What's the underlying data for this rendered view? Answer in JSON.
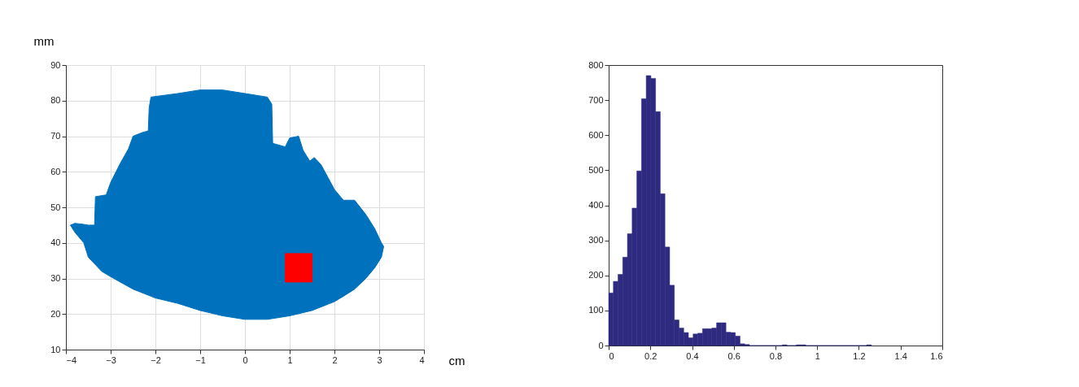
{
  "chart_data": [
    {
      "type": "area",
      "xlabel": "cm",
      "ylabel": "mm",
      "xlim": [
        -4,
        4
      ],
      "xticks": [
        -4,
        -3,
        -2,
        -1,
        0,
        1,
        2,
        3,
        4
      ],
      "ylim": [
        10,
        90
      ],
      "yticks": [
        10,
        20,
        30,
        40,
        50,
        60,
        70,
        80,
        90
      ],
      "grid": true,
      "series": [
        {
          "type": "area",
          "color": "#0072bd",
          "x": [
            -3.9,
            -3.8,
            -3.6,
            -3.5,
            -3.36,
            -3.34,
            -3.1,
            -3.0,
            -2.8,
            -2.6,
            -2.5,
            -2.3,
            -2.16,
            -2.14,
            -2.1,
            -1.5,
            -1.0,
            -0.5,
            0,
            0.5,
            0.6,
            0.62,
            0.9,
            1.0,
            1.2,
            1.3,
            1.45,
            1.55,
            1.7,
            2.0,
            2.2,
            2.45,
            2.7,
            2.9,
            3.05,
            3.1,
            3.05,
            2.9,
            2.7,
            2.45,
            2.2,
            2.0,
            1.5,
            1.0,
            0.5,
            0,
            -0.5,
            -1.0,
            -1.5,
            -2.0,
            -2.5,
            -3.0,
            -3.2,
            -3.5,
            -3.6,
            -3.8
          ],
          "values": [
            45,
            45.5,
            45.2,
            45,
            45,
            53,
            53.5,
            57,
            62,
            66.5,
            70,
            71,
            71.5,
            78,
            81,
            82,
            83,
            83,
            82,
            81,
            79,
            68,
            67,
            69.5,
            70,
            66,
            63,
            64,
            62,
            55,
            52,
            52,
            48,
            44,
            40,
            39,
            36,
            33,
            30,
            27,
            25,
            23.5,
            21,
            19.5,
            18.5,
            18.5,
            19.5,
            21,
            23,
            24.5,
            27,
            30.5,
            32,
            36,
            40,
            43
          ]
        },
        {
          "type": "area",
          "color": "#ff0000",
          "x": [
            0.9,
            1.5,
            1.5,
            0.9
          ],
          "values": [
            37,
            37,
            29,
            29
          ]
        }
      ]
    },
    {
      "type": "histogram",
      "color": "#2e2a80",
      "xlim": [
        0,
        1.6
      ],
      "xticks": [
        0,
        0.2,
        0.4,
        0.6,
        0.8,
        1,
        1.2,
        1.4,
        1.6
      ],
      "ylim": [
        0,
        800
      ],
      "yticks": [
        0,
        100,
        200,
        300,
        400,
        500,
        600,
        700,
        800
      ],
      "grid": false,
      "bins": [
        0,
        0.0225,
        0.045,
        0.0675,
        0.09,
        0.1125,
        0.135,
        0.1575,
        0.18,
        0.2025,
        0.225,
        0.2475,
        0.27,
        0.2925,
        0.315,
        0.3375,
        0.36,
        0.3825,
        0.405,
        0.4275,
        0.45,
        0.4725,
        0.495,
        0.5175,
        0.54,
        0.5625,
        0.585,
        0.6075,
        0.63,
        0.6525,
        0.675,
        0.6975,
        0.72,
        0.7425,
        0.765,
        0.7875,
        0.81,
        0.8325,
        0.855,
        0.8775,
        0.9,
        0.9225,
        0.945,
        0.9675,
        0.99,
        1.0125,
        1.035,
        1.0575,
        1.08,
        1.1025,
        1.125,
        1.1475,
        1.17,
        1.1925,
        1.215,
        1.2375,
        1.26
      ],
      "values": [
        150,
        183,
        203,
        252,
        319,
        392,
        498,
        704,
        770,
        762,
        667,
        433,
        281,
        172,
        73,
        50,
        37,
        22,
        33,
        35,
        48,
        48,
        50,
        65,
        65,
        38,
        37,
        27,
        5,
        3,
        0,
        0,
        0,
        0,
        0,
        0,
        0,
        2,
        0,
        0,
        2,
        2,
        0,
        0,
        0,
        0,
        0,
        0,
        0,
        0,
        0,
        0,
        0,
        0,
        0,
        2
      ]
    }
  ]
}
